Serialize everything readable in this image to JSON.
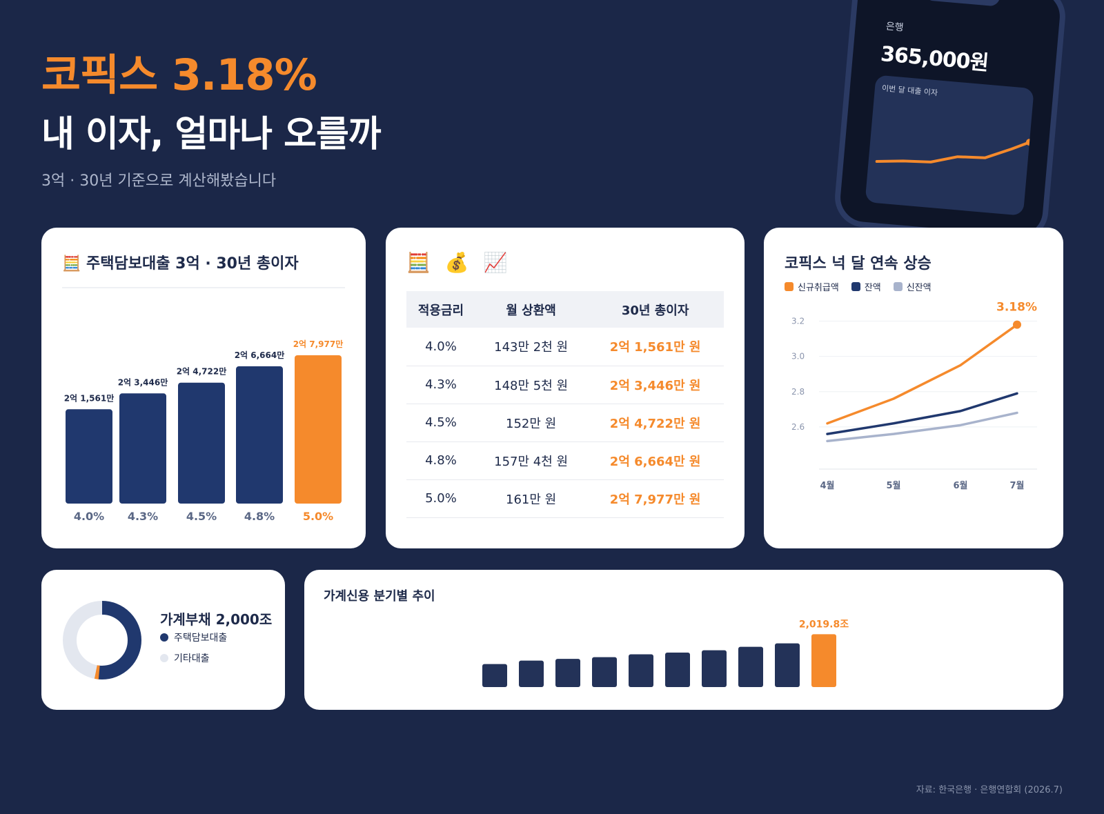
{
  "hero": {
    "title": "코픽스 3.18%",
    "subtitle": "내 이자, 얼마나 오를까",
    "description": "3억 · 30년 기준으로 계산해봤습니다"
  },
  "phone": {
    "bank": "은행",
    "amount": "365,000원",
    "panel_label": "이번 달 대출 이자"
  },
  "colors": {
    "background": "#1b2748",
    "accent": "#f58a2c",
    "navy": "#20386e",
    "gray": "#a8b3cc"
  },
  "bar_card": {
    "title": "🧮 주택담보대출 3억 · 30년 총이자"
  },
  "table_card": {
    "emojis": "🧮 💰 📈",
    "headers": [
      "적용금리",
      "월 상환액",
      "30년 총이자"
    ],
    "rows": [
      [
        "4.0%",
        "143만 2천 원",
        "2억 1,561만 원"
      ],
      [
        "4.3%",
        "148만 5천 원",
        "2억 3,446만 원"
      ],
      [
        "4.5%",
        "152만 원",
        "2억 4,722만 원"
      ],
      [
        "4.8%",
        "157만 4천 원",
        "2억 6,664만 원"
      ],
      [
        "5.0%",
        "161만 원",
        "2억 7,977만 원"
      ]
    ]
  },
  "line_card": {
    "title": "코픽스 넉 달 연속 상승",
    "legend": [
      "신규취급액",
      "잔액",
      "신잔액"
    ]
  },
  "donut_card": {
    "title": "가계부채 2,000조",
    "legend": [
      "주택담보대출",
      "기타대출"
    ]
  },
  "credit_card": {
    "title": "가계신용 분기별 추이"
  },
  "source": "자료: 한국은행 · 은행연합회 (2026.7)",
  "chart_data": [
    {
      "type": "bar",
      "title": "주택담보대출 3억 · 30년 총이자",
      "categories": [
        "4.0%",
        "4.3%",
        "4.5%",
        "4.8%",
        "5.0%"
      ],
      "values": [
        21561,
        23446,
        24722,
        26664,
        27977
      ],
      "data_labels": [
        "2억 1,561만",
        "2억 3,446만",
        "2억 4,722만",
        "2억 6,664만",
        "2억 7,977만"
      ],
      "highlight_index": 4
    },
    {
      "type": "line",
      "title": "코픽스 넉 달 연속 상승",
      "x": [
        "4월",
        "5월",
        "6월",
        "7월"
      ],
      "yticks": [
        "2.6",
        "2.8",
        "3.0",
        "3.2"
      ],
      "ylim": [
        2.4,
        3.3
      ],
      "series": [
        {
          "name": "신규취급액",
          "color": "#f58a2c",
          "values": [
            2.62,
            2.76,
            2.95,
            3.18
          ]
        },
        {
          "name": "잔액",
          "color": "#20386e",
          "values": [
            2.56,
            2.62,
            2.69,
            2.79
          ]
        },
        {
          "name": "신잔액",
          "color": "#a8b3cc",
          "values": [
            2.52,
            2.56,
            2.61,
            2.68
          ]
        }
      ],
      "end_label": "3.18%",
      "grid": true,
      "legend_position": "top-left"
    },
    {
      "type": "pie",
      "title": "가계부채 2,000조",
      "categories": [
        "주택담보대출",
        "기타대출"
      ],
      "values": [
        52,
        48
      ]
    },
    {
      "type": "bar",
      "title": "가계신용 분기별 추이",
      "values": [
        1760,
        1790,
        1805,
        1820,
        1845,
        1860,
        1880,
        1910,
        1940,
        2019.8
      ],
      "end_label": "2,019.8조",
      "ylim": [
        1500,
        2100
      ]
    }
  ]
}
